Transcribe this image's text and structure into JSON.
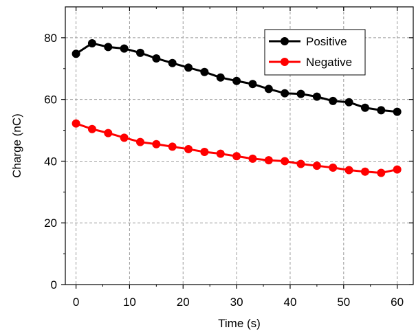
{
  "chart_data": {
    "type": "line",
    "xlabel": "Time (s)",
    "ylabel": "Charge (nC)",
    "xlim": [
      -2,
      63
    ],
    "ylim": [
      0,
      90
    ],
    "x_ticks": [
      0,
      10,
      20,
      30,
      40,
      50,
      60
    ],
    "y_ticks": [
      0,
      20,
      40,
      60,
      80
    ],
    "grid": true,
    "legend_position": "top-right",
    "x": [
      0,
      3,
      6,
      9,
      12,
      15,
      18,
      21,
      24,
      27,
      30,
      33,
      36,
      39,
      42,
      45,
      48,
      51,
      54,
      57,
      60
    ],
    "series": [
      {
        "name": "Positive",
        "color": "#000000",
        "values": [
          74.8,
          78.2,
          77.0,
          76.5,
          75.1,
          73.3,
          71.8,
          70.3,
          68.9,
          67.1,
          66.0,
          65.0,
          63.4,
          62.0,
          61.8,
          60.9,
          59.5,
          59.1,
          57.3,
          56.5,
          56.0
        ]
      },
      {
        "name": "Negative",
        "color": "#ff0000",
        "values": [
          52.2,
          50.4,
          49.1,
          47.6,
          46.2,
          45.5,
          44.7,
          43.9,
          43.0,
          42.4,
          41.6,
          40.8,
          40.3,
          40.0,
          39.1,
          38.5,
          37.9,
          37.1,
          36.6,
          36.2,
          37.3
        ]
      }
    ]
  }
}
